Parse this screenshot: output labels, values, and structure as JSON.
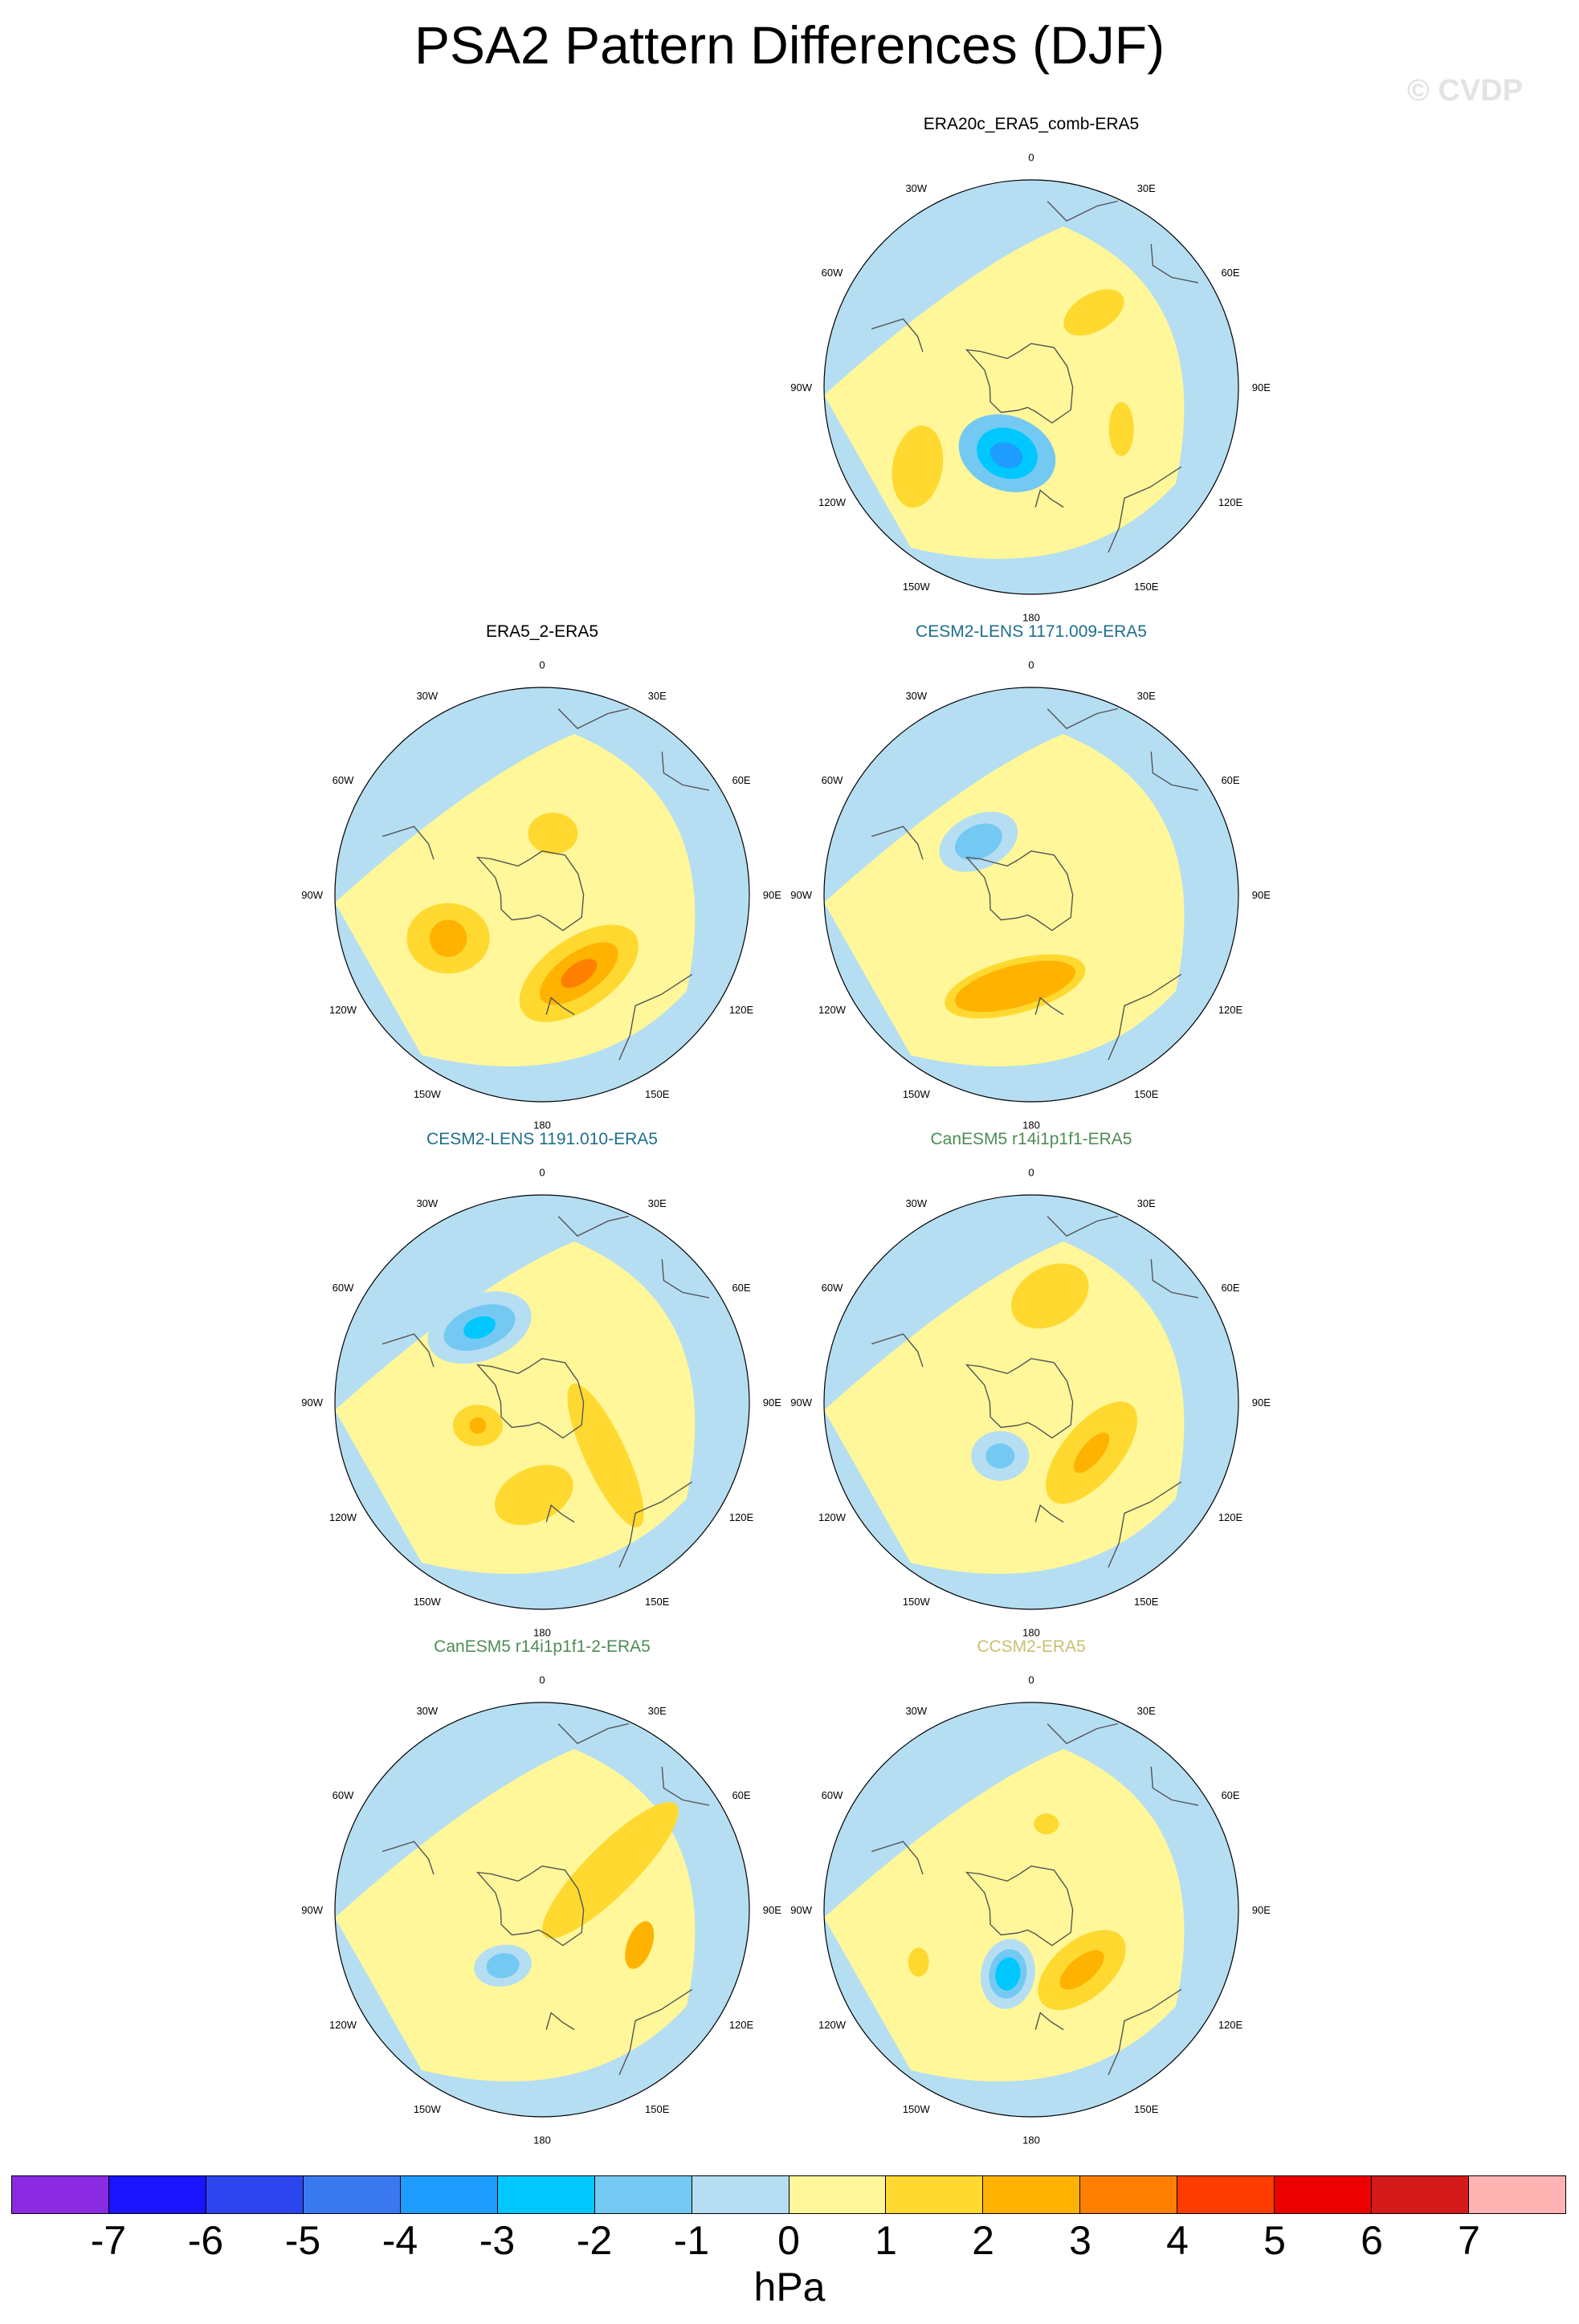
{
  "title": "PSA2 Pattern Differences (DJF)",
  "watermark": "© CVDP",
  "colors": {
    "land_outline": "#555555",
    "levels": [
      "#8a2be2",
      "#1a14ff",
      "#2d45ee",
      "#3a78f0",
      "#1e9cff",
      "#00c8ff",
      "#74c9f2",
      "#b5def3",
      "#fff799",
      "#ffd930",
      "#ffb300",
      "#ff8000",
      "#ff3d00",
      "#ec0000",
      "#d41a1a",
      "#ffb3b3"
    ]
  },
  "colorbar": {
    "ticks": [
      "-7",
      "-6",
      "-5",
      "-4",
      "-3",
      "-2",
      "-1",
      "0",
      "1",
      "2",
      "3",
      "4",
      "5",
      "6",
      "7"
    ],
    "units": "hPa"
  },
  "map_labels": {
    "lon_0": "0",
    "lon_30e": "30E",
    "lon_60e": "60E",
    "lon_90e": "90E",
    "lon_120e": "120E",
    "lon_150e": "150E",
    "lon_180": "180",
    "lon_150w": "150W",
    "lon_120w": "120W",
    "lon_90w": "90W",
    "lon_60w": "60W",
    "lon_30w": "30W"
  },
  "panels": [
    {
      "title": "ERA20c_ERA5_comb-ERA5",
      "title_color": "#000000",
      "features": [
        {
          "level": -2,
          "lon": -160,
          "r": 0.34,
          "rx": 0.24,
          "ry": 0.18,
          "rot": 20
        },
        {
          "level": -3,
          "lon": -160,
          "r": 0.34,
          "rx": 0.15,
          "ry": 0.12,
          "rot": 20
        },
        {
          "level": -4,
          "lon": -160,
          "r": 0.35,
          "rx": 0.08,
          "ry": 0.06,
          "rot": 20
        },
        {
          "level": 1,
          "lon": 40,
          "r": 0.47,
          "rx": 0.16,
          "ry": 0.09,
          "rot": -30
        },
        {
          "level": 1,
          "lon": -125,
          "r": 0.67,
          "rx": 0.12,
          "ry": 0.2,
          "rot": 10
        },
        {
          "level": 1,
          "lon": 115,
          "r": 0.48,
          "rx": 0.06,
          "ry": 0.13,
          "rot": 0
        }
      ]
    },
    {
      "title": "ERA5_2-ERA5",
      "title_color": "#000000",
      "features": [
        {
          "level": 1,
          "lon": 155,
          "r": 0.42,
          "rx": 0.33,
          "ry": 0.17,
          "rot": -35
        },
        {
          "level": 2,
          "lon": 155,
          "r": 0.42,
          "rx": 0.22,
          "ry": 0.1,
          "rot": -35
        },
        {
          "level": 3,
          "lon": 155,
          "r": 0.42,
          "rx": 0.1,
          "ry": 0.05,
          "rot": -35
        },
        {
          "level": 1,
          "lon": -115,
          "r": 0.5,
          "rx": 0.2,
          "ry": 0.17,
          "rot": 0
        },
        {
          "level": 2,
          "lon": -115,
          "r": 0.5,
          "rx": 0.09,
          "ry": 0.09,
          "rot": 0
        },
        {
          "level": 1,
          "lon": 10,
          "r": 0.3,
          "rx": 0.12,
          "ry": 0.1,
          "rot": 0
        }
      ]
    },
    {
      "title": "CESM2-LENS 1171.009-ERA5",
      "title_color": "#1f6e8c",
      "features": [
        {
          "level": -1,
          "lon": -45,
          "r": 0.36,
          "rx": 0.2,
          "ry": 0.13,
          "rot": -25
        },
        {
          "level": -2,
          "lon": -45,
          "r": 0.36,
          "rx": 0.12,
          "ry": 0.08,
          "rot": -25
        },
        {
          "level": 1,
          "lon": -170,
          "r": 0.45,
          "rx": 0.35,
          "ry": 0.13,
          "rot": -15
        },
        {
          "level": 2,
          "lon": -170,
          "r": 0.45,
          "rx": 0.3,
          "ry": 0.1,
          "rot": -15
        }
      ]
    },
    {
      "title": "CESM2-LENS 1191.010-ERA5",
      "title_color": "#1f6e8c",
      "features": [
        {
          "level": -1,
          "lon": -40,
          "r": 0.47,
          "rx": 0.26,
          "ry": 0.16,
          "rot": -20
        },
        {
          "level": -2,
          "lon": -40,
          "r": 0.47,
          "rx": 0.18,
          "ry": 0.1,
          "rot": -20
        },
        {
          "level": -3,
          "lon": -40,
          "r": 0.47,
          "rx": 0.08,
          "ry": 0.05,
          "rot": -20
        },
        {
          "level": 1,
          "lon": 130,
          "r": 0.4,
          "rx": 0.1,
          "ry": 0.38,
          "rot": -25
        },
        {
          "level": 1,
          "lon": -175,
          "r": 0.45,
          "rx": 0.2,
          "ry": 0.13,
          "rot": -25
        },
        {
          "level": 1,
          "lon": -110,
          "r": 0.33,
          "rx": 0.12,
          "ry": 0.1,
          "rot": 0
        },
        {
          "level": 2,
          "lon": -110,
          "r": 0.33,
          "rx": 0.04,
          "ry": 0.04,
          "rot": 0
        }
      ]
    },
    {
      "title": "CanESM5 r14i1p1f1-ERA5",
      "title_color": "#4e8c55",
      "features": [
        {
          "level": 1,
          "lon": 10,
          "r": 0.52,
          "rx": 0.2,
          "ry": 0.14,
          "rot": -30
        },
        {
          "level": 1,
          "lon": 130,
          "r": 0.38,
          "rx": 0.3,
          "ry": 0.14,
          "rot": -50
        },
        {
          "level": 2,
          "lon": 130,
          "r": 0.38,
          "rx": 0.12,
          "ry": 0.05,
          "rot": -50
        },
        {
          "level": -1,
          "lon": -150,
          "r": 0.3,
          "rx": 0.14,
          "ry": 0.12,
          "rot": 0
        },
        {
          "level": -2,
          "lon": -150,
          "r": 0.3,
          "rx": 0.07,
          "ry": 0.06,
          "rot": 0
        }
      ]
    },
    {
      "title": "CanESM5 r14i1p1f1-2-ERA5",
      "title_color": "#4e8c55",
      "features": [
        {
          "level": 1,
          "lon": 60,
          "r": 0.38,
          "rx": 0.12,
          "ry": 0.45,
          "rot": 45
        },
        {
          "level": 2,
          "lon": 110,
          "r": 0.5,
          "rx": 0.06,
          "ry": 0.12,
          "rot": 20
        },
        {
          "level": -1,
          "lon": -145,
          "r": 0.33,
          "rx": 0.14,
          "ry": 0.1,
          "rot": -10
        },
        {
          "level": -2,
          "lon": -145,
          "r": 0.33,
          "rx": 0.08,
          "ry": 0.06,
          "rot": -10
        }
      ]
    },
    {
      "title": "CCSM2-ERA5",
      "title_color": "#c8c070",
      "features": [
        {
          "level": -1,
          "lon": -160,
          "r": 0.33,
          "rx": 0.13,
          "ry": 0.17,
          "rot": 10
        },
        {
          "level": -2,
          "lon": -160,
          "r": 0.33,
          "rx": 0.09,
          "ry": 0.12,
          "rot": 10
        },
        {
          "level": -3,
          "lon": -160,
          "r": 0.33,
          "rx": 0.06,
          "ry": 0.08,
          "rot": 10
        },
        {
          "level": 1,
          "lon": 140,
          "r": 0.38,
          "rx": 0.25,
          "ry": 0.14,
          "rot": -40
        },
        {
          "level": 2,
          "lon": 140,
          "r": 0.38,
          "rx": 0.13,
          "ry": 0.06,
          "rot": -40
        },
        {
          "level": 1,
          "lon": 10,
          "r": 0.42,
          "rx": 0.06,
          "ry": 0.05,
          "rot": 0
        },
        {
          "level": 1,
          "lon": -115,
          "r": 0.6,
          "rx": 0.05,
          "ry": 0.07,
          "rot": 0
        }
      ]
    }
  ]
}
